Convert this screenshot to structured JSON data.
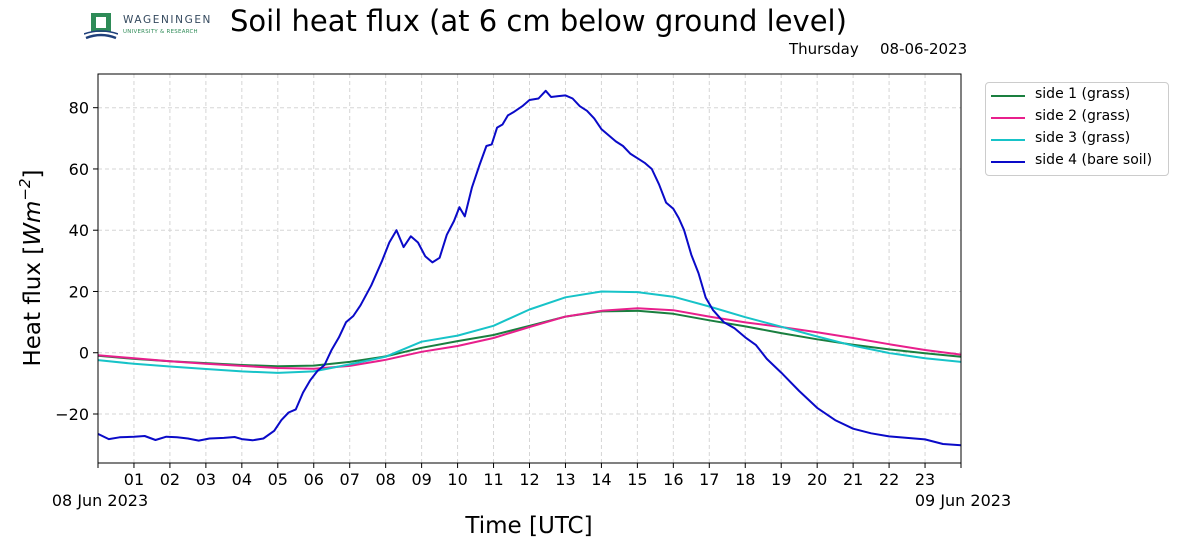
{
  "header": {
    "logo": {
      "name": "WAGENINGEN",
      "subtitle": "UNIVERSITY & RESEARCH",
      "colors": {
        "green": "#2e8b57",
        "blue": "#1f3f7a",
        "gray": "#34495e"
      }
    },
    "title": "Soil heat flux (at 6 cm below ground level)",
    "day": "Thursday",
    "date": "08-06-2023"
  },
  "chart_data": {
    "type": "line",
    "title": "Soil heat flux (at 6 cm below ground level)",
    "xlabel": "Time [UTC]",
    "ylabel_text": "Heat flux [",
    "ylabel_unit": "Wm",
    "ylabel_exp": "−2",
    "ylabel_close": "]",
    "xlim": [
      0,
      24
    ],
    "ylim": [
      -36,
      91
    ],
    "grid": true,
    "legend_position": "outside-top-right",
    "x_ticks": [
      {
        "x": 1,
        "label": "01"
      },
      {
        "x": 2,
        "label": "02"
      },
      {
        "x": 3,
        "label": "03"
      },
      {
        "x": 4,
        "label": "04"
      },
      {
        "x": 5,
        "label": "05"
      },
      {
        "x": 6,
        "label": "06"
      },
      {
        "x": 7,
        "label": "07"
      },
      {
        "x": 8,
        "label": "08"
      },
      {
        "x": 9,
        "label": "09"
      },
      {
        "x": 10,
        "label": "10"
      },
      {
        "x": 11,
        "label": "11"
      },
      {
        "x": 12,
        "label": "12"
      },
      {
        "x": 13,
        "label": "13"
      },
      {
        "x": 14,
        "label": "14"
      },
      {
        "x": 15,
        "label": "15"
      },
      {
        "x": 16,
        "label": "16"
      },
      {
        "x": 17,
        "label": "17"
      },
      {
        "x": 18,
        "label": "18"
      },
      {
        "x": 19,
        "label": "19"
      },
      {
        "x": 20,
        "label": "20"
      },
      {
        "x": 21,
        "label": "21"
      },
      {
        "x": 22,
        "label": "22"
      },
      {
        "x": 23,
        "label": "23"
      }
    ],
    "x_date_labels": [
      {
        "x": 0,
        "label": "08 Jun 2023"
      },
      {
        "x": 24,
        "label": "09 Jun 2023"
      }
    ],
    "y_ticks": [
      {
        "y": -20,
        "label": "−20"
      },
      {
        "y": 0,
        "label": "0"
      },
      {
        "y": 20,
        "label": "20"
      },
      {
        "y": 40,
        "label": "40"
      },
      {
        "y": 60,
        "label": "60"
      },
      {
        "y": 80,
        "label": "80"
      }
    ],
    "series": [
      {
        "name": "side 1 (grass)",
        "color": "#1a7f3f",
        "points": [
          [
            0,
            -1
          ],
          [
            1,
            -2
          ],
          [
            2,
            -2.8
          ],
          [
            3,
            -3.4
          ],
          [
            4,
            -4
          ],
          [
            5,
            -4.4
          ],
          [
            6,
            -4.2
          ],
          [
            7,
            -3
          ],
          [
            8,
            -1.2
          ],
          [
            9,
            1.6
          ],
          [
            10,
            3.8
          ],
          [
            11,
            5.8
          ],
          [
            12,
            8.8
          ],
          [
            13,
            11.8
          ],
          [
            14,
            13.5
          ],
          [
            15,
            13.7
          ],
          [
            16,
            12.7
          ],
          [
            17,
            10.6
          ],
          [
            18,
            8.6
          ],
          [
            19,
            6.4
          ],
          [
            20,
            4.4
          ],
          [
            21,
            2.6
          ],
          [
            22,
            1.1
          ],
          [
            23,
            -0.2
          ],
          [
            24,
            -1.3
          ]
        ]
      },
      {
        "name": "side 2 (grass)",
        "color": "#e81f8c",
        "points": [
          [
            0,
            -0.8
          ],
          [
            1,
            -1.8
          ],
          [
            2,
            -2.8
          ],
          [
            3,
            -3.6
          ],
          [
            4,
            -4.3
          ],
          [
            5,
            -5
          ],
          [
            6,
            -5.2
          ],
          [
            7,
            -4.3
          ],
          [
            8,
            -2.3
          ],
          [
            9,
            0.3
          ],
          [
            10,
            2.2
          ],
          [
            11,
            4.8
          ],
          [
            12,
            8.4
          ],
          [
            13,
            11.8
          ],
          [
            14,
            13.7
          ],
          [
            15,
            14.5
          ],
          [
            16,
            13.9
          ],
          [
            17,
            11.8
          ],
          [
            18,
            9.9
          ],
          [
            19,
            8.4
          ],
          [
            20,
            6.7
          ],
          [
            21,
            4.8
          ],
          [
            22,
            2.8
          ],
          [
            23,
            0.9
          ],
          [
            24,
            -0.6
          ]
        ]
      },
      {
        "name": "side 3 (grass)",
        "color": "#17c3c8",
        "points": [
          [
            0,
            -2.4
          ],
          [
            1,
            -3.6
          ],
          [
            2,
            -4.5
          ],
          [
            3,
            -5.3
          ],
          [
            4,
            -6.1
          ],
          [
            5,
            -6.6
          ],
          [
            6,
            -6.1
          ],
          [
            7,
            -3.8
          ],
          [
            8,
            -1.3
          ],
          [
            9,
            3.6
          ],
          [
            10,
            5.6
          ],
          [
            11,
            8.8
          ],
          [
            12,
            14.1
          ],
          [
            13,
            18.1
          ],
          [
            14,
            20
          ],
          [
            15,
            19.8
          ],
          [
            16,
            18.3
          ],
          [
            17,
            15.1
          ],
          [
            18,
            11.6
          ],
          [
            19,
            8.5
          ],
          [
            20,
            5.3
          ],
          [
            21,
            2.3
          ],
          [
            22,
            -0.1
          ],
          [
            23,
            -1.8
          ],
          [
            24,
            -3
          ]
        ]
      },
      {
        "name": "side 4 (bare soil)",
        "color": "#0a0ac8",
        "points": [
          [
            0,
            -26.5
          ],
          [
            0.3,
            -28.2
          ],
          [
            0.6,
            -27.6
          ],
          [
            1,
            -27.4
          ],
          [
            1.3,
            -27.2
          ],
          [
            1.6,
            -28.5
          ],
          [
            1.9,
            -27.4
          ],
          [
            2.2,
            -27.6
          ],
          [
            2.5,
            -28
          ],
          [
            2.8,
            -28.7
          ],
          [
            3.1,
            -28
          ],
          [
            3.5,
            -27.8
          ],
          [
            3.8,
            -27.5
          ],
          [
            4,
            -28.2
          ],
          [
            4.3,
            -28.6
          ],
          [
            4.6,
            -28
          ],
          [
            4.9,
            -25.5
          ],
          [
            5.1,
            -22
          ],
          [
            5.3,
            -19.5
          ],
          [
            5.5,
            -18.5
          ],
          [
            5.7,
            -13
          ],
          [
            5.9,
            -9
          ],
          [
            6.1,
            -6
          ],
          [
            6.3,
            -4
          ],
          [
            6.5,
            1
          ],
          [
            6.7,
            5
          ],
          [
            6.9,
            10
          ],
          [
            7.1,
            12
          ],
          [
            7.3,
            15.5
          ],
          [
            7.6,
            22
          ],
          [
            7.9,
            30
          ],
          [
            8.1,
            36
          ],
          [
            8.3,
            40
          ],
          [
            8.5,
            34.5
          ],
          [
            8.7,
            38
          ],
          [
            8.9,
            36
          ],
          [
            9.1,
            31.5
          ],
          [
            9.3,
            29.5
          ],
          [
            9.5,
            31
          ],
          [
            9.7,
            38.5
          ],
          [
            9.9,
            43
          ],
          [
            10.05,
            47.5
          ],
          [
            10.2,
            44.5
          ],
          [
            10.4,
            54
          ],
          [
            10.6,
            61
          ],
          [
            10.8,
            67.5
          ],
          [
            10.95,
            68
          ],
          [
            11.1,
            73.5
          ],
          [
            11.25,
            74.5
          ],
          [
            11.4,
            77.5
          ],
          [
            11.55,
            78.5
          ],
          [
            11.8,
            80.5
          ],
          [
            12,
            82.5
          ],
          [
            12.25,
            83
          ],
          [
            12.45,
            85.5
          ],
          [
            12.6,
            83.5
          ],
          [
            12.8,
            83.8
          ],
          [
            13,
            84
          ],
          [
            13.2,
            83
          ],
          [
            13.4,
            80.5
          ],
          [
            13.6,
            79
          ],
          [
            13.8,
            76.5
          ],
          [
            14,
            73
          ],
          [
            14.2,
            71
          ],
          [
            14.4,
            69
          ],
          [
            14.6,
            67.5
          ],
          [
            14.8,
            65
          ],
          [
            15,
            63.5
          ],
          [
            15.2,
            62
          ],
          [
            15.4,
            60
          ],
          [
            15.6,
            55
          ],
          [
            15.8,
            49
          ],
          [
            16,
            47
          ],
          [
            16.15,
            44
          ],
          [
            16.3,
            40
          ],
          [
            16.5,
            32
          ],
          [
            16.7,
            26
          ],
          [
            16.9,
            18
          ],
          [
            17.1,
            14
          ],
          [
            17.4,
            10
          ],
          [
            17.7,
            8
          ],
          [
            18,
            5
          ],
          [
            18.3,
            2.5
          ],
          [
            18.6,
            -2
          ],
          [
            19,
            -6.5
          ],
          [
            19.5,
            -12.5
          ],
          [
            20,
            -18
          ],
          [
            20.5,
            -22
          ],
          [
            21,
            -24.8
          ],
          [
            21.5,
            -26.3
          ],
          [
            22,
            -27.3
          ],
          [
            22.5,
            -27.8
          ],
          [
            23,
            -28.3
          ],
          [
            23.5,
            -29.8
          ],
          [
            24,
            -30.2
          ]
        ]
      }
    ]
  }
}
